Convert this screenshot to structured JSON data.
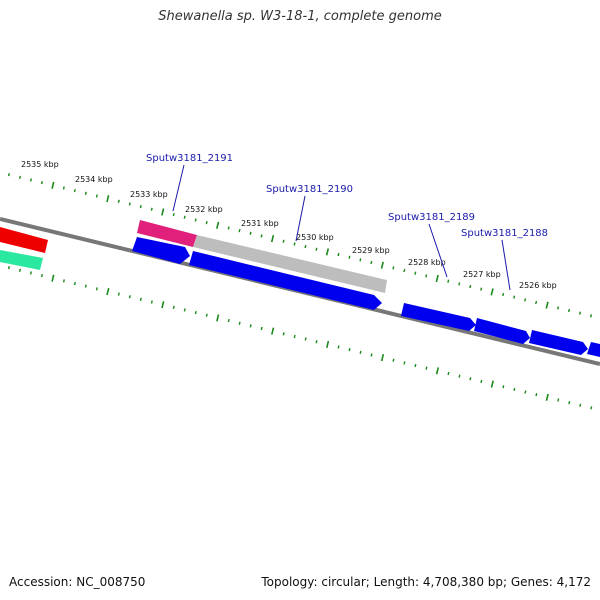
{
  "title": "Shewanella sp. W3-18-1, complete genome",
  "footer": {
    "accession": "Accession: NC_008750",
    "summary": "Topology: circular; Length: 4,708,380 bp; Genes: 4,172"
  },
  "colors": {
    "backbone": "#777777",
    "ticks": "#1a8a1a",
    "gene_label": "#1a1aaa",
    "forward_gene": "#e0207a",
    "pseudo_gene": "#bdbdbd",
    "reverse_gene": "#0000ee",
    "red_feature": "#ee0000",
    "teal_feature": "#2ae8a0"
  },
  "kbp_labels": [
    "2535 kbp",
    "2534 kbp",
    "2533 kbp",
    "2532 kbp",
    "2531 kbp",
    "2530 kbp",
    "2529 kbp",
    "2528 kbp",
    "2527 kbp",
    "2526 kbp"
  ],
  "gene_labels": [
    "Sputw3181_2191",
    "Sputw3181_2190",
    "Sputw3181_2189",
    "Sputw3181_2188"
  ]
}
